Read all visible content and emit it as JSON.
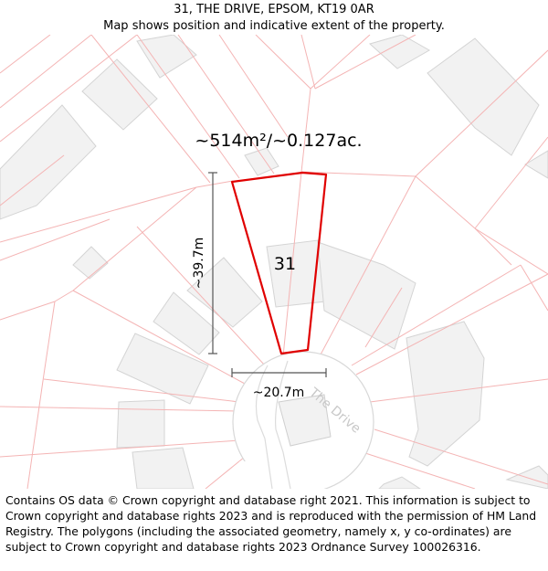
{
  "header": {
    "title": "31, THE DRIVE, EPSOM, KT19 0AR",
    "subtitle": "Map shows position and indicative extent of the property."
  },
  "map": {
    "area_label": "~514m²/~0.127ac.",
    "house_number": "31",
    "height_label": "~39.7m",
    "width_label": "~20.7m",
    "road_label": "The Drive",
    "colors": {
      "boundary": "#f4b4b4",
      "property_outline": "#e00000",
      "building_fill": "#f2f2f2"
    }
  },
  "footer": {
    "copyright": "Contains OS data © Crown copyright and database right 2021. This information is subject to Crown copyright and database rights 2023 and is reproduced with the permission of HM Land Registry. The polygons (including the associated geometry, namely x, y co-ordinates) are subject to Crown copyright and database rights 2023 Ordnance Survey 100026316."
  }
}
